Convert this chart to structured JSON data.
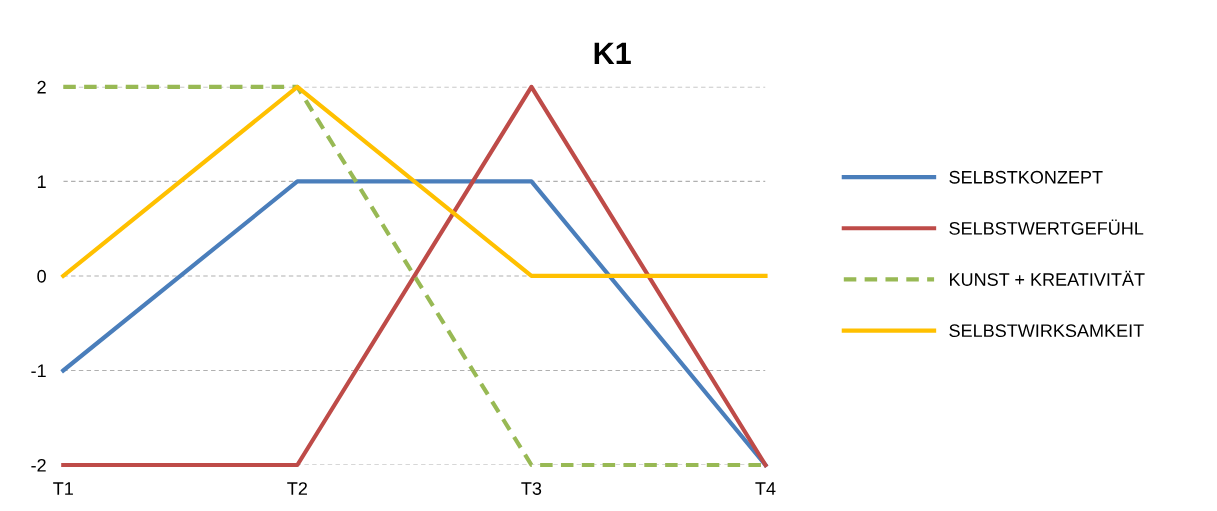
{
  "chart_data": {
    "type": "line",
    "title": "K1",
    "categories": [
      "T1",
      "T2",
      "T3",
      "T4"
    ],
    "series": [
      {
        "name": "SELBSTKONZEPT",
        "color": "#4a7ebb",
        "values": [
          -1,
          1,
          1,
          -2
        ],
        "line_style": "solid"
      },
      {
        "name": "SELBSTWERTGEFÜHL",
        "color": "#be4b48",
        "values": [
          -2,
          -2,
          2,
          -2
        ],
        "line_style": "solid"
      },
      {
        "name": "KUNST + KREATIVITÄT",
        "color": "#98b954",
        "values": [
          2,
          2,
          -2,
          -2
        ],
        "line_style": "dashed"
      },
      {
        "name": "SELBSTWIRKSAMKEIT",
        "color": "#ffc000",
        "values": [
          0,
          2,
          0,
          0
        ],
        "line_style": "solid"
      }
    ],
    "ylim": [
      -2,
      2
    ],
    "yticks": [
      -2,
      -1,
      0,
      1,
      2
    ],
    "grid": "y",
    "legend": "right",
    "marker": "none"
  }
}
